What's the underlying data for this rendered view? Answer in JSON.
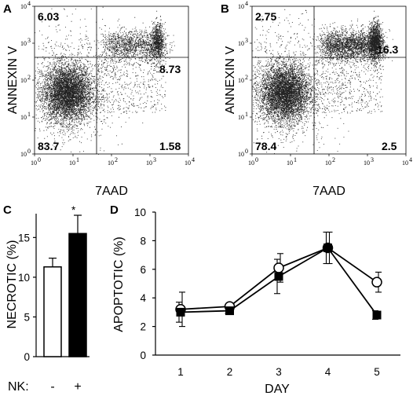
{
  "chart_data": [
    {
      "panel": "A",
      "type": "scatter",
      "xlabel": "7AAD",
      "ylabel": "ANNEXIN V",
      "x_ticks": [
        "10^0",
        "10^1",
        "10^2",
        "10^3",
        "10^4"
      ],
      "y_ticks": [
        "10^0",
        "10^1",
        "10^2",
        "10^3",
        "10^4"
      ],
      "xlim": [
        1,
        10000
      ],
      "ylim": [
        1,
        10000
      ],
      "scale": "log",
      "quadrants": {
        "upper_left": "6.03",
        "upper_right": "8.73",
        "lower_left": "83.7",
        "lower_right": "1.58"
      }
    },
    {
      "panel": "B",
      "type": "scatter",
      "xlabel": "7AAD",
      "ylabel": "ANNEXIN V",
      "x_ticks": [
        "10^0",
        "10^1",
        "10^2",
        "10^3",
        "10^4"
      ],
      "y_ticks": [
        "10^0",
        "10^1",
        "10^2",
        "10^3",
        "10^4"
      ],
      "xlim": [
        1,
        10000
      ],
      "ylim": [
        1,
        10000
      ],
      "scale": "log",
      "quadrants": {
        "upper_left": "2.75",
        "upper_right": "16.3",
        "lower_left": "78.4",
        "lower_right": "2.5"
      }
    },
    {
      "panel": "C",
      "type": "bar",
      "ylabel": "NECROTIC (%)",
      "categories": [
        "-",
        "+"
      ],
      "category_axis_label": "NK:",
      "values": [
        11.3,
        15.5
      ],
      "errors": [
        1.1,
        2.3
      ],
      "bar_colors": [
        "#ffffff",
        "#000000"
      ],
      "y_ticks": [
        "0",
        "5",
        "10",
        "15"
      ],
      "ylim": [
        0,
        18
      ],
      "annotation": "*"
    },
    {
      "panel": "D",
      "type": "line",
      "xlabel": "DAY",
      "ylabel": "APOPTOTIC (%)",
      "x": [
        1,
        2,
        3,
        4,
        5
      ],
      "x_ticks": [
        "1",
        "2",
        "3",
        "4",
        "5"
      ],
      "y_ticks": [
        "0",
        "2",
        "4",
        "6",
        "8",
        "10"
      ],
      "ylim": [
        0,
        10
      ],
      "series": [
        {
          "marker": "open-circle",
          "values": [
            3.2,
            3.4,
            6.1,
            7.5,
            5.1
          ],
          "errors": [
            1.2,
            0.2,
            1.0,
            1.1,
            0.7
          ]
        },
        {
          "marker": "filled-square",
          "values": [
            3.0,
            3.1,
            5.5,
            7.5,
            2.8
          ],
          "errors": [
            0.7,
            0.2,
            1.2,
            1.1,
            0.3
          ]
        }
      ]
    }
  ],
  "panel_letters": [
    "A",
    "B",
    "C",
    "D"
  ]
}
